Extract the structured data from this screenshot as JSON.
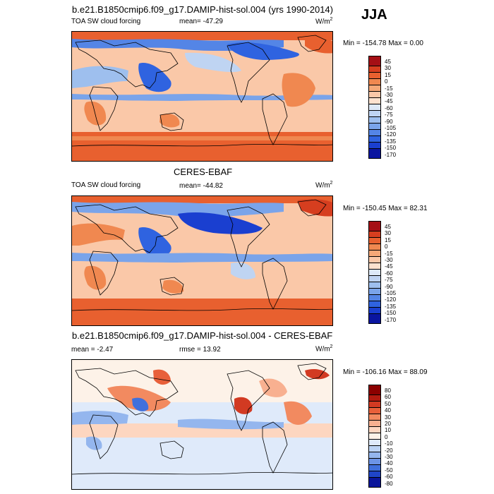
{
  "season": "JJA",
  "panels": [
    {
      "title": "b.e21.B1850cmip6.f09_g17.DAMIP-hist-sol.004 (yrs 1990-2014)",
      "variable": "TOA SW cloud forcing",
      "stat_label": "mean= -47.29",
      "units": "W/m",
      "units_exp": "2",
      "minmax": "Min = -154.78 Max =   0.00",
      "levels": [
        "45",
        "30",
        "15",
        "0",
        "-15",
        "-30",
        "-45",
        "-60",
        "-75",
        "-90",
        "-105",
        "-120",
        "-135",
        "-150",
        "-170"
      ],
      "colors": [
        "#a50f15",
        "#d63e1f",
        "#e8602f",
        "#f08850",
        "#f5a878",
        "#fac8a8",
        "#fde2cf",
        "#dde9f8",
        "#bfd4f2",
        "#9ebfee",
        "#7aa4ea",
        "#5485e6",
        "#2f63e0",
        "#1a3fd0",
        "#0a15a0"
      ]
    },
    {
      "title": "CERES-EBAF",
      "variable": "TOA SW cloud forcing",
      "stat_label": "mean= -44.82",
      "units": "W/m",
      "units_exp": "2",
      "minmax": "Min = -150.45 Max =  82.31",
      "levels": [
        "45",
        "30",
        "15",
        "0",
        "-15",
        "-30",
        "-45",
        "-60",
        "-75",
        "-90",
        "-105",
        "-120",
        "-135",
        "-150",
        "-170"
      ],
      "colors": [
        "#a50f15",
        "#d63e1f",
        "#e8602f",
        "#f08850",
        "#f5a878",
        "#fac8a8",
        "#fde2cf",
        "#dde9f8",
        "#bfd4f2",
        "#9ebfee",
        "#7aa4ea",
        "#5485e6",
        "#2f63e0",
        "#1a3fd0",
        "#0a15a0"
      ]
    },
    {
      "title": "b.e21.B1850cmip6.f09_g17.DAMIP-hist-sol.004 - CERES-EBAF",
      "variable": "mean =  -2.47",
      "stat_label": "rmse =  13.92",
      "units": "W/m",
      "units_exp": "2",
      "minmax": "Min = -106.16 Max =  88.09",
      "levels": [
        "80",
        "60",
        "50",
        "40",
        "30",
        "20",
        "10",
        "0",
        "-10",
        "-20",
        "-30",
        "-40",
        "-50",
        "-60",
        "-80"
      ],
      "colors": [
        "#8b0000",
        "#b21a10",
        "#d23a22",
        "#e8603a",
        "#f28a60",
        "#f8b090",
        "#fdd6c0",
        "#fdf2e8",
        "#dfeafa",
        "#bcd3f4",
        "#94b6ee",
        "#6c94e6",
        "#4070dc",
        "#1f45c8",
        "#0a159a"
      ]
    }
  ]
}
